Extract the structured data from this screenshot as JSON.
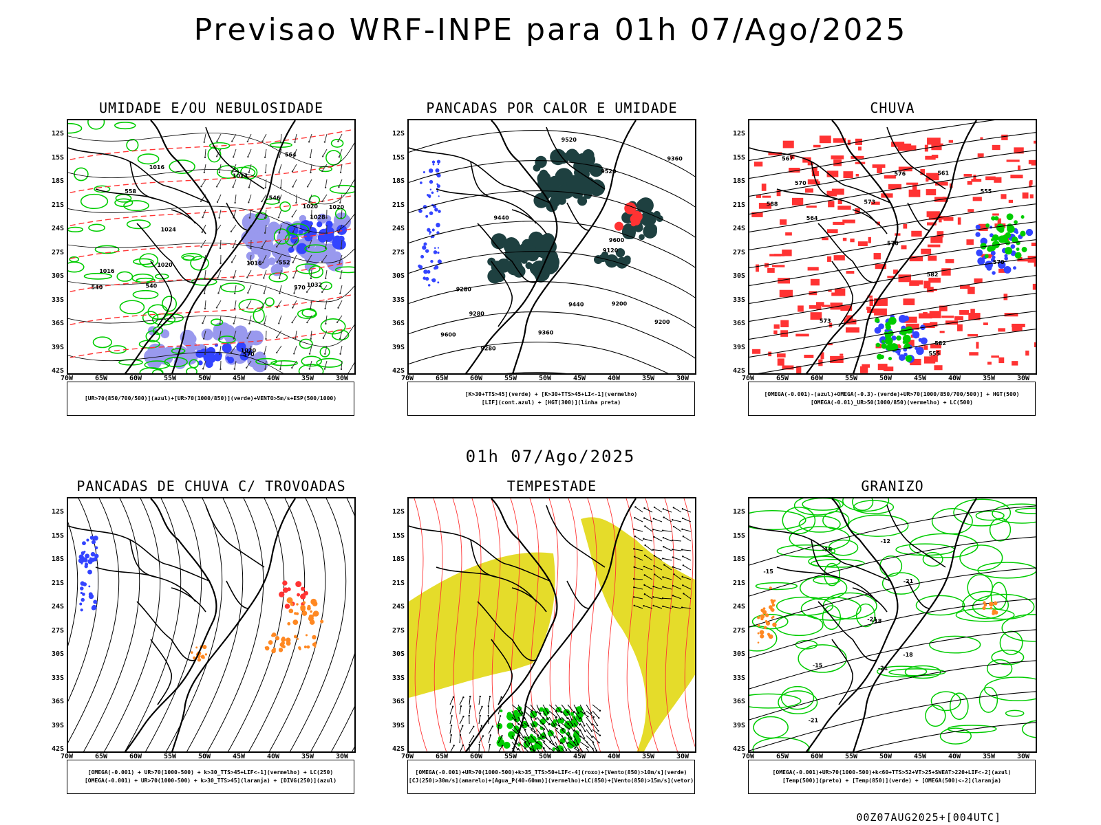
{
  "header": {
    "title": "Previsao WRF-INPE  para 01h 07/Ago/2025"
  },
  "middle": {
    "title": "01h 07/Ago/2025"
  },
  "footer": {
    "stamp": "00Z07AUG2025+[004UTC]"
  },
  "axes": {
    "lat_labels": [
      "12S",
      "15S",
      "18S",
      "21S",
      "24S",
      "27S",
      "30S",
      "33S",
      "36S",
      "39S",
      "42S"
    ],
    "lon_labels": [
      "70W",
      "65W",
      "60W",
      "55W",
      "50W",
      "45W",
      "40W",
      "35W",
      "30W"
    ]
  },
  "panels": [
    {
      "title": "UMIDADE E/OU NEBULOSIDADE",
      "legend": [
        "[UR>70(850/700/500)](azul)+[UR>70(1000/850)](verde)+VENTO>5m/s+ESP(500/1000)"
      ]
    },
    {
      "title": "PANCADAS POR CALOR E UMIDADE",
      "legend": [
        "[K>30+TTS>45](verde) + [K>30+TTS>45+LI<-1](vermelho)",
        "[LIF](cont.azul) + [HGT(300)](linha preta)"
      ]
    },
    {
      "title": "CHUVA",
      "legend": [
        "[OMEGA(-0.001)-(azul)+OMEGA(-0.3)-(verde)+UR>70(1000/850/700/500)] + HGT(500)",
        "[OMEGA(-0.01)_UR>50(1000/850)(vermelho) + LC(500)"
      ]
    },
    {
      "title": "PANCADAS DE CHUVA C/ TROVOADAS",
      "legend": [
        "[OMEGA(-0.001) + UR>70(1000-500) + k>30_TTS>45+LIF<-1](vermelho) + LC(250)",
        "[OMEGA(-0.001) + UR>70(1000-500) + k>30_TTS>45](laranja) + [DIVG(250)](azul)"
      ]
    },
    {
      "title": "TEMPESTADE",
      "legend": [
        "[OMEGA(-0.001)+UR>70(1000-500)+k>35_TTS>50+LIF<-4](roxo)+[Vento(850)>10m/s](verde)",
        "[CJ(250)>30m/s](amarelo)+[Agua_P(40-60mm)](vermelho)+LC(850)+[Vento(850)>15m/s](vetor)"
      ]
    },
    {
      "title": "GRANIZO",
      "legend": [
        "[OMEGA(-0.001)+UR>70(1000-500)+k<60+TTS>52+VT>25+SWEAT>220+LIF<-2](azul)",
        "[Temp(500)](preto) + [Temp(850)](verde) + [OMEGA(500)<-2](laranja)"
      ]
    }
  ],
  "contour_labels": {
    "p1": [
      "1016",
      "1016",
      "1020",
      "1020",
      "1016",
      "1020",
      "1024",
      "1028",
      "1024",
      "1032",
      "1020",
      "570",
      "570",
      "564",
      "558",
      "552",
      "546",
      "540",
      "540"
    ],
    "p2": [
      "9600",
      "9600",
      "9520",
      "9520",
      "9440",
      "9440",
      "9360",
      "9360",
      "9280",
      "9280",
      "9280",
      "9200",
      "9200",
      "9120"
    ],
    "p3": [
      "588",
      "582",
      "582",
      "576",
      "576",
      "573",
      "573",
      "570",
      "570",
      "567",
      "564",
      "561",
      "555",
      "555"
    ],
    "p6": [
      "-15",
      "-15",
      "-12",
      "-18",
      "-18",
      "-21",
      "-21",
      "-21",
      "-21",
      "-16"
    ]
  },
  "colors": {
    "green": "#00cc00",
    "red": "#ff3333",
    "blue": "#3344ff",
    "lightblue": "#9999ee",
    "darkteal": "#1e4040",
    "yellow": "#e5dc2a",
    "orange": "#ff8822"
  }
}
